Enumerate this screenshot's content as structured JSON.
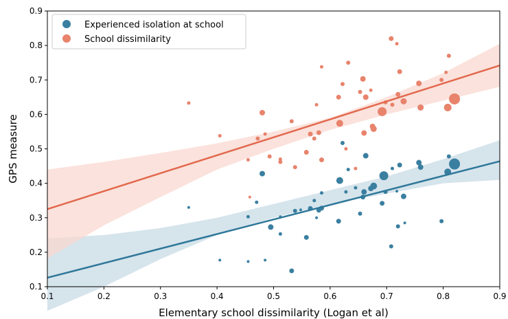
{
  "chart_data": {
    "type": "scatter",
    "xlabel": "Elementary school dissimilarity (Logan et al)",
    "ylabel": "GPS measure",
    "xlim": [
      0.1,
      0.9
    ],
    "ylim": [
      0.1,
      0.9
    ],
    "xticks": [
      "0.1",
      "0.2",
      "0.3",
      "0.4",
      "0.5",
      "0.6",
      "0.7",
      "0.8",
      "0.9"
    ],
    "yticks": [
      "0.1",
      "0.2",
      "0.3",
      "0.4",
      "0.5",
      "0.6",
      "0.7",
      "0.8",
      "0.9"
    ],
    "grid": false,
    "legend_position": "top-left",
    "series": [
      {
        "name": "Experienced isolation at school",
        "color": "#3a7fa0",
        "line_color": "#2e7799",
        "band_color": "#c8dbe6",
        "regression": {
          "x": [
            0.1,
            0.9
          ],
          "y": [
            0.126,
            0.464
          ]
        },
        "ci": {
          "x": [
            0.1,
            0.2,
            0.3,
            0.4,
            0.5,
            0.6,
            0.7,
            0.8,
            0.9
          ],
          "lower": [
            0.03,
            0.1,
            0.18,
            0.25,
            0.3,
            0.34,
            0.37,
            0.4,
            0.41
          ],
          "upper": [
            0.24,
            0.25,
            0.27,
            0.3,
            0.34,
            0.38,
            0.42,
            0.47,
            0.525
          ]
        },
        "points": [
          {
            "x": 0.35,
            "y": 0.33,
            "s": 2
          },
          {
            "x": 0.405,
            "y": 0.177,
            "s": 2
          },
          {
            "x": 0.455,
            "y": 0.173,
            "s": 2
          },
          {
            "x": 0.455,
            "y": 0.303,
            "s": 2.5
          },
          {
            "x": 0.47,
            "y": 0.345,
            "s": 2.5
          },
          {
            "x": 0.48,
            "y": 0.428,
            "s": 4
          },
          {
            "x": 0.485,
            "y": 0.177,
            "s": 2
          },
          {
            "x": 0.495,
            "y": 0.273,
            "s": 4
          },
          {
            "x": 0.512,
            "y": 0.253,
            "s": 2.5
          },
          {
            "x": 0.512,
            "y": 0.303,
            "s": 2
          },
          {
            "x": 0.532,
            "y": 0.146,
            "s": 3.5
          },
          {
            "x": 0.538,
            "y": 0.32,
            "s": 3
          },
          {
            "x": 0.548,
            "y": 0.323,
            "s": 2
          },
          {
            "x": 0.558,
            "y": 0.243,
            "s": 3.5
          },
          {
            "x": 0.565,
            "y": 0.327,
            "s": 3.5
          },
          {
            "x": 0.572,
            "y": 0.35,
            "s": 2.5
          },
          {
            "x": 0.576,
            "y": 0.3,
            "s": 2
          },
          {
            "x": 0.58,
            "y": 0.322,
            "s": 3.5
          },
          {
            "x": 0.585,
            "y": 0.328,
            "s": 3.5
          },
          {
            "x": 0.585,
            "y": 0.372,
            "s": 2.5
          },
          {
            "x": 0.615,
            "y": 0.29,
            "s": 3.5
          },
          {
            "x": 0.617,
            "y": 0.408,
            "s": 5
          },
          {
            "x": 0.622,
            "y": 0.517,
            "s": 3
          },
          {
            "x": 0.628,
            "y": 0.375,
            "s": 2.5
          },
          {
            "x": 0.632,
            "y": 0.44,
            "s": 2.5
          },
          {
            "x": 0.645,
            "y": 0.387,
            "s": 2.5
          },
          {
            "x": 0.653,
            "y": 0.312,
            "s": 3
          },
          {
            "x": 0.658,
            "y": 0.36,
            "s": 3.5
          },
          {
            "x": 0.66,
            "y": 0.375,
            "s": 4
          },
          {
            "x": 0.663,
            "y": 0.48,
            "s": 4
          },
          {
            "x": 0.672,
            "y": 0.385,
            "s": 4
          },
          {
            "x": 0.677,
            "y": 0.392,
            "s": 5
          },
          {
            "x": 0.692,
            "y": 0.342,
            "s": 3.5
          },
          {
            "x": 0.695,
            "y": 0.422,
            "s": 6.5
          },
          {
            "x": 0.698,
            "y": 0.375,
            "s": 3
          },
          {
            "x": 0.708,
            "y": 0.217,
            "s": 3
          },
          {
            "x": 0.71,
            "y": 0.443,
            "s": 2.5
          },
          {
            "x": 0.718,
            "y": 0.377,
            "s": 2
          },
          {
            "x": 0.72,
            "y": 0.275,
            "s": 3
          },
          {
            "x": 0.723,
            "y": 0.453,
            "s": 3.5
          },
          {
            "x": 0.73,
            "y": 0.362,
            "s": 4
          },
          {
            "x": 0.732,
            "y": 0.285,
            "s": 2
          },
          {
            "x": 0.757,
            "y": 0.46,
            "s": 4
          },
          {
            "x": 0.76,
            "y": 0.447,
            "s": 4
          },
          {
            "x": 0.797,
            "y": 0.29,
            "s": 3
          },
          {
            "x": 0.808,
            "y": 0.433,
            "s": 5
          },
          {
            "x": 0.81,
            "y": 0.478,
            "s": 3
          },
          {
            "x": 0.82,
            "y": 0.456,
            "s": 8
          }
        ]
      },
      {
        "name": "School dissimilarity",
        "color": "#e8836c",
        "line_color": "#e2694e",
        "band_color": "#f9d8d0",
        "regression": {
          "x": [
            0.1,
            0.9
          ],
          "y": [
            0.325,
            0.742
          ]
        },
        "ci": {
          "x": [
            0.1,
            0.2,
            0.3,
            0.4,
            0.5,
            0.6,
            0.7,
            0.8,
            0.9
          ],
          "lower": [
            0.182,
            0.278,
            0.36,
            0.44,
            0.5,
            0.555,
            0.6,
            0.64,
            0.68
          ],
          "upper": [
            0.44,
            0.462,
            0.488,
            0.516,
            0.55,
            0.59,
            0.65,
            0.72,
            0.805
          ]
        },
        "points": [
          {
            "x": 0.35,
            "y": 0.633,
            "s": 2.5
          },
          {
            "x": 0.405,
            "y": 0.538,
            "s": 2.5
          },
          {
            "x": 0.455,
            "y": 0.468,
            "s": 2.5
          },
          {
            "x": 0.458,
            "y": 0.36,
            "s": 2
          },
          {
            "x": 0.472,
            "y": 0.53,
            "s": 3
          },
          {
            "x": 0.48,
            "y": 0.605,
            "s": 4
          },
          {
            "x": 0.485,
            "y": 0.543,
            "s": 2.5
          },
          {
            "x": 0.493,
            "y": 0.478,
            "s": 3
          },
          {
            "x": 0.512,
            "y": 0.462,
            "s": 3
          },
          {
            "x": 0.512,
            "y": 0.47,
            "s": 2.5
          },
          {
            "x": 0.532,
            "y": 0.58,
            "s": 3
          },
          {
            "x": 0.538,
            "y": 0.447,
            "s": 3
          },
          {
            "x": 0.558,
            "y": 0.49,
            "s": 3.5
          },
          {
            "x": 0.565,
            "y": 0.543,
            "s": 3.5
          },
          {
            "x": 0.572,
            "y": 0.53,
            "s": 3
          },
          {
            "x": 0.576,
            "y": 0.628,
            "s": 2.5
          },
          {
            "x": 0.58,
            "y": 0.547,
            "s": 3.5
          },
          {
            "x": 0.585,
            "y": 0.738,
            "s": 2.5
          },
          {
            "x": 0.585,
            "y": 0.468,
            "s": 3.5
          },
          {
            "x": 0.615,
            "y": 0.65,
            "s": 3.5
          },
          {
            "x": 0.617,
            "y": 0.574,
            "s": 5
          },
          {
            "x": 0.622,
            "y": 0.688,
            "s": 3
          },
          {
            "x": 0.628,
            "y": 0.5,
            "s": 2.5
          },
          {
            "x": 0.632,
            "y": 0.75,
            "s": 3
          },
          {
            "x": 0.645,
            "y": 0.443,
            "s": 2.5
          },
          {
            "x": 0.653,
            "y": 0.665,
            "s": 3
          },
          {
            "x": 0.658,
            "y": 0.703,
            "s": 4
          },
          {
            "x": 0.66,
            "y": 0.546,
            "s": 4
          },
          {
            "x": 0.663,
            "y": 0.65,
            "s": 4
          },
          {
            "x": 0.672,
            "y": 0.67,
            "s": 2.5
          },
          {
            "x": 0.675,
            "y": 0.565,
            "s": 4
          },
          {
            "x": 0.677,
            "y": 0.558,
            "s": 4.5
          },
          {
            "x": 0.692,
            "y": 0.608,
            "s": 6.5
          },
          {
            "x": 0.698,
            "y": 0.635,
            "s": 3
          },
          {
            "x": 0.708,
            "y": 0.82,
            "s": 3.5
          },
          {
            "x": 0.71,
            "y": 0.628,
            "s": 3
          },
          {
            "x": 0.718,
            "y": 0.805,
            "s": 2.5
          },
          {
            "x": 0.72,
            "y": 0.658,
            "s": 3.5
          },
          {
            "x": 0.723,
            "y": 0.724,
            "s": 3.5
          },
          {
            "x": 0.73,
            "y": 0.638,
            "s": 4.5
          },
          {
            "x": 0.757,
            "y": 0.69,
            "s": 4
          },
          {
            "x": 0.76,
            "y": 0.62,
            "s": 4.5
          },
          {
            "x": 0.797,
            "y": 0.7,
            "s": 3
          },
          {
            "x": 0.805,
            "y": 0.722,
            "s": 2.5
          },
          {
            "x": 0.81,
            "y": 0.77,
            "s": 3
          },
          {
            "x": 0.808,
            "y": 0.62,
            "s": 5.5
          },
          {
            "x": 0.82,
            "y": 0.645,
            "s": 8
          }
        ]
      }
    ]
  }
}
